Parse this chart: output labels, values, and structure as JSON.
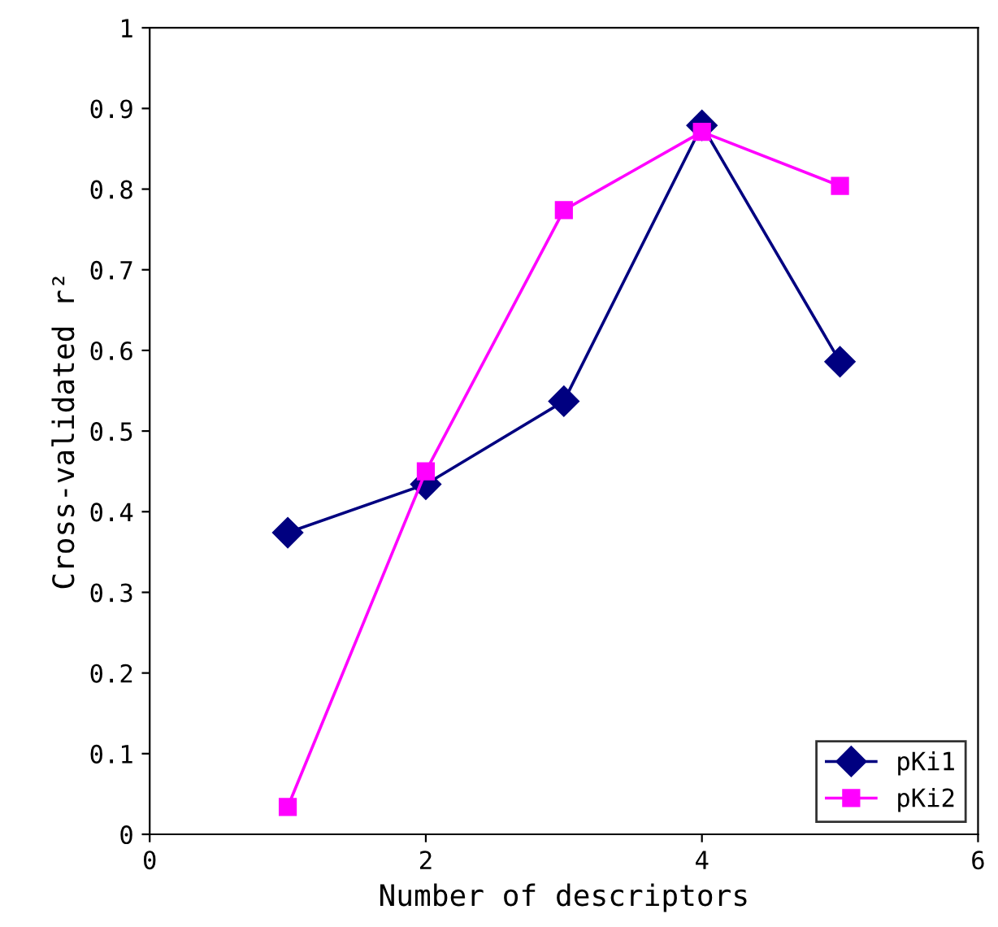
{
  "chart_data": {
    "type": "line",
    "xlabel": "Number of descriptors",
    "ylabel": "Cross-validated r²",
    "x": [
      1,
      2,
      3,
      4,
      5
    ],
    "series": [
      {
        "name": "pKi1",
        "color": "#000080",
        "marker": "diamond",
        "values": [
          0.374,
          0.434,
          0.537,
          0.879,
          0.586
        ]
      },
      {
        "name": "pKi2",
        "color": "#ff00ff",
        "marker": "square",
        "values": [
          0.034,
          0.45,
          0.774,
          0.871,
          0.804
        ]
      }
    ],
    "xlim": [
      0,
      6
    ],
    "xticks": [
      0,
      2,
      4,
      6
    ],
    "ylim": [
      0,
      1
    ],
    "yticks": [
      0,
      0.1,
      0.2,
      0.3,
      0.4,
      0.5,
      0.6,
      0.7,
      0.8,
      0.9,
      1
    ],
    "grid": false,
    "legend": "bottom right",
    "line_style": "solid"
  }
}
